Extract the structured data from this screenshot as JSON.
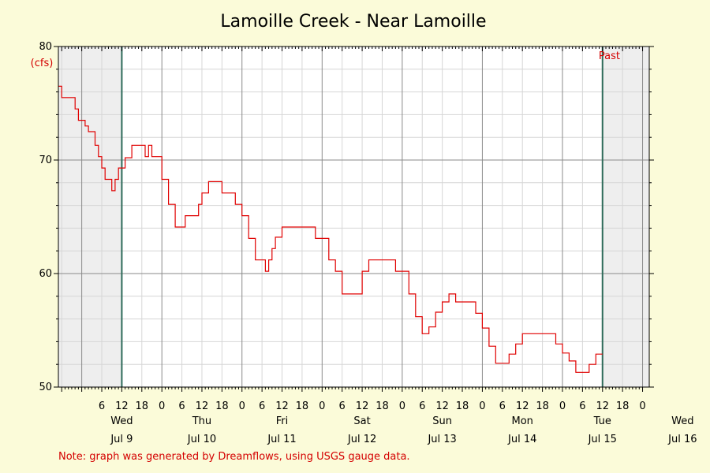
{
  "chart_data": {
    "type": "line",
    "title": "Lamoille Creek - Near Lamoille",
    "ylabel": "(cfs)",
    "ylim": [
      50,
      80
    ],
    "yticks": [
      50,
      60,
      70,
      80
    ],
    "x_range_hours": [
      -7,
      170
    ],
    "past_marker_hour": 156,
    "past_label": "Past",
    "note": "Note: graph was generated by Dreamflows, using USGS gauge data.",
    "hour_ticks_label": [
      "6",
      "12",
      "18",
      "0"
    ],
    "days": [
      {
        "day": "Wed",
        "date": "Jul 9"
      },
      {
        "day": "Thu",
        "date": "Jul 10"
      },
      {
        "day": "Fri",
        "date": "Jul 11"
      },
      {
        "day": "Sat",
        "date": "Jul 12"
      },
      {
        "day": "Sun",
        "date": "Jul 13"
      },
      {
        "day": "Mon",
        "date": "Jul 14"
      },
      {
        "day": "Tue",
        "date": "Jul 15"
      },
      {
        "day": "Wed",
        "date": "Jul 16"
      }
    ],
    "series": [
      {
        "color": "#e00000",
        "x": [
          -7,
          -6,
          -5,
          -3,
          -2,
          -1,
          0,
          1,
          2,
          3,
          4,
          5,
          6,
          7,
          8,
          9,
          10,
          11,
          12,
          13,
          14,
          15,
          16,
          17,
          18,
          19,
          20,
          21,
          22,
          24,
          26,
          28,
          30,
          31,
          33,
          35,
          36,
          38,
          40,
          42,
          44,
          46,
          48,
          50,
          52,
          54,
          55,
          56,
          57,
          58,
          60,
          62,
          64,
          66,
          68,
          70,
          72,
          74,
          76,
          78,
          80,
          82,
          84,
          86,
          88,
          90,
          92,
          94,
          96,
          98,
          100,
          102,
          104,
          106,
          108,
          110,
          112,
          114,
          116,
          118,
          120,
          122,
          124,
          126,
          128,
          130,
          132,
          134,
          136,
          138,
          140,
          142,
          144,
          146,
          148,
          150,
          152,
          154,
          156
        ],
        "y": [
          76.5,
          75.5,
          75.5,
          75.5,
          74.5,
          73.5,
          73.5,
          73,
          72.5,
          72.5,
          71.3,
          70.3,
          69.3,
          68.3,
          68.3,
          67.3,
          68.3,
          69.3,
          69.3,
          70.2,
          70.2,
          71.3,
          71.3,
          71.3,
          71.3,
          70.3,
          71.3,
          70.3,
          70.3,
          68.3,
          66.1,
          64.1,
          64.1,
          65.1,
          65.1,
          66.1,
          67.1,
          68.1,
          68.1,
          67.1,
          67.1,
          66.1,
          65.1,
          63.1,
          61.2,
          61.2,
          60.2,
          61.2,
          62.2,
          63.2,
          64.1,
          64.1,
          64.1,
          64.1,
          64.1,
          63.1,
          63.1,
          61.2,
          60.2,
          58.2,
          58.2,
          58.2,
          60.2,
          61.2,
          61.2,
          61.2,
          61.2,
          60.2,
          60.2,
          58.2,
          56.2,
          54.7,
          55.3,
          56.6,
          57.5,
          58.2,
          57.5,
          57.5,
          57.5,
          56.5,
          55.2,
          53.6,
          52.1,
          52.1,
          52.9,
          53.8,
          54.7,
          54.7,
          54.7,
          54.7,
          54.7,
          53.8,
          53.0,
          52.3,
          51.3,
          51.3,
          52.0,
          52.9,
          52.9
        ]
      }
    ]
  }
}
